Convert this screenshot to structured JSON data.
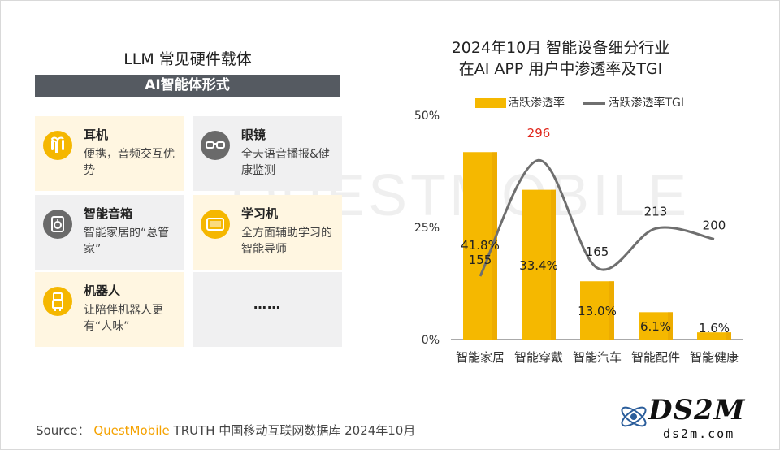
{
  "left": {
    "title": "LLM 常见硬件载体",
    "band": "AI智能体形式",
    "cards": [
      {
        "name": "耳机",
        "desc": "便携，音频交互优势",
        "icon": "earbuds-icon"
      },
      {
        "name": "眼镜",
        "desc": "全天语音播报&健康监测",
        "icon": "glasses-icon"
      },
      {
        "name": "智能音箱",
        "desc": "智能家居的“总管家”",
        "icon": "speaker-icon"
      },
      {
        "name": "学习机",
        "desc": "全方面辅助学习的智能导师",
        "icon": "tablet-icon"
      },
      {
        "name": "机器人",
        "desc": "让陪伴机器人更有“人味”",
        "icon": "robot-icon"
      },
      {
        "name": "……",
        "desc": "",
        "icon": ""
      }
    ]
  },
  "chart_title_line1": "2024年10月 智能设备细分行业",
  "chart_title_line2": "在AI APP 用户中渗透率及TGI",
  "legend": {
    "bar": "活跃渗透率",
    "line": "活跃渗透率TGI"
  },
  "chart_data": {
    "type": "bar",
    "categories": [
      "智能家居",
      "智能穿戴",
      "智能汽车",
      "智能配件",
      "智能健康"
    ],
    "series": [
      {
        "name": "活跃渗透率",
        "type": "bar",
        "values": [
          41.8,
          33.4,
          13.0,
          6.1,
          1.6
        ],
        "labels": [
          "41.8%",
          "33.4%",
          "13.0%",
          "6.1%",
          "1.6%"
        ]
      },
      {
        "name": "活跃渗透率TGI",
        "type": "line",
        "values": [
          155,
          296,
          165,
          213,
          200
        ],
        "labels": [
          "155",
          "296",
          "165",
          "213",
          "200"
        ]
      }
    ],
    "y_ticks": [
      "0%",
      "25%",
      "50%"
    ],
    "ylim": [
      0,
      50
    ],
    "colors": {
      "bar": "#f5b800",
      "line": "#6f6f6f",
      "highlight": "#e0261b"
    },
    "highlight_index": 1
  },
  "footer": {
    "source_label": "Source：",
    "source_brand": "QuestMobile",
    "source_text": "TRUTH 中国移动互联网数据库 2024年10月"
  },
  "watermark": {
    "logo": "DS2M",
    "url": "ds2m.com",
    "bg_mark": "QUESTMOBILE"
  }
}
